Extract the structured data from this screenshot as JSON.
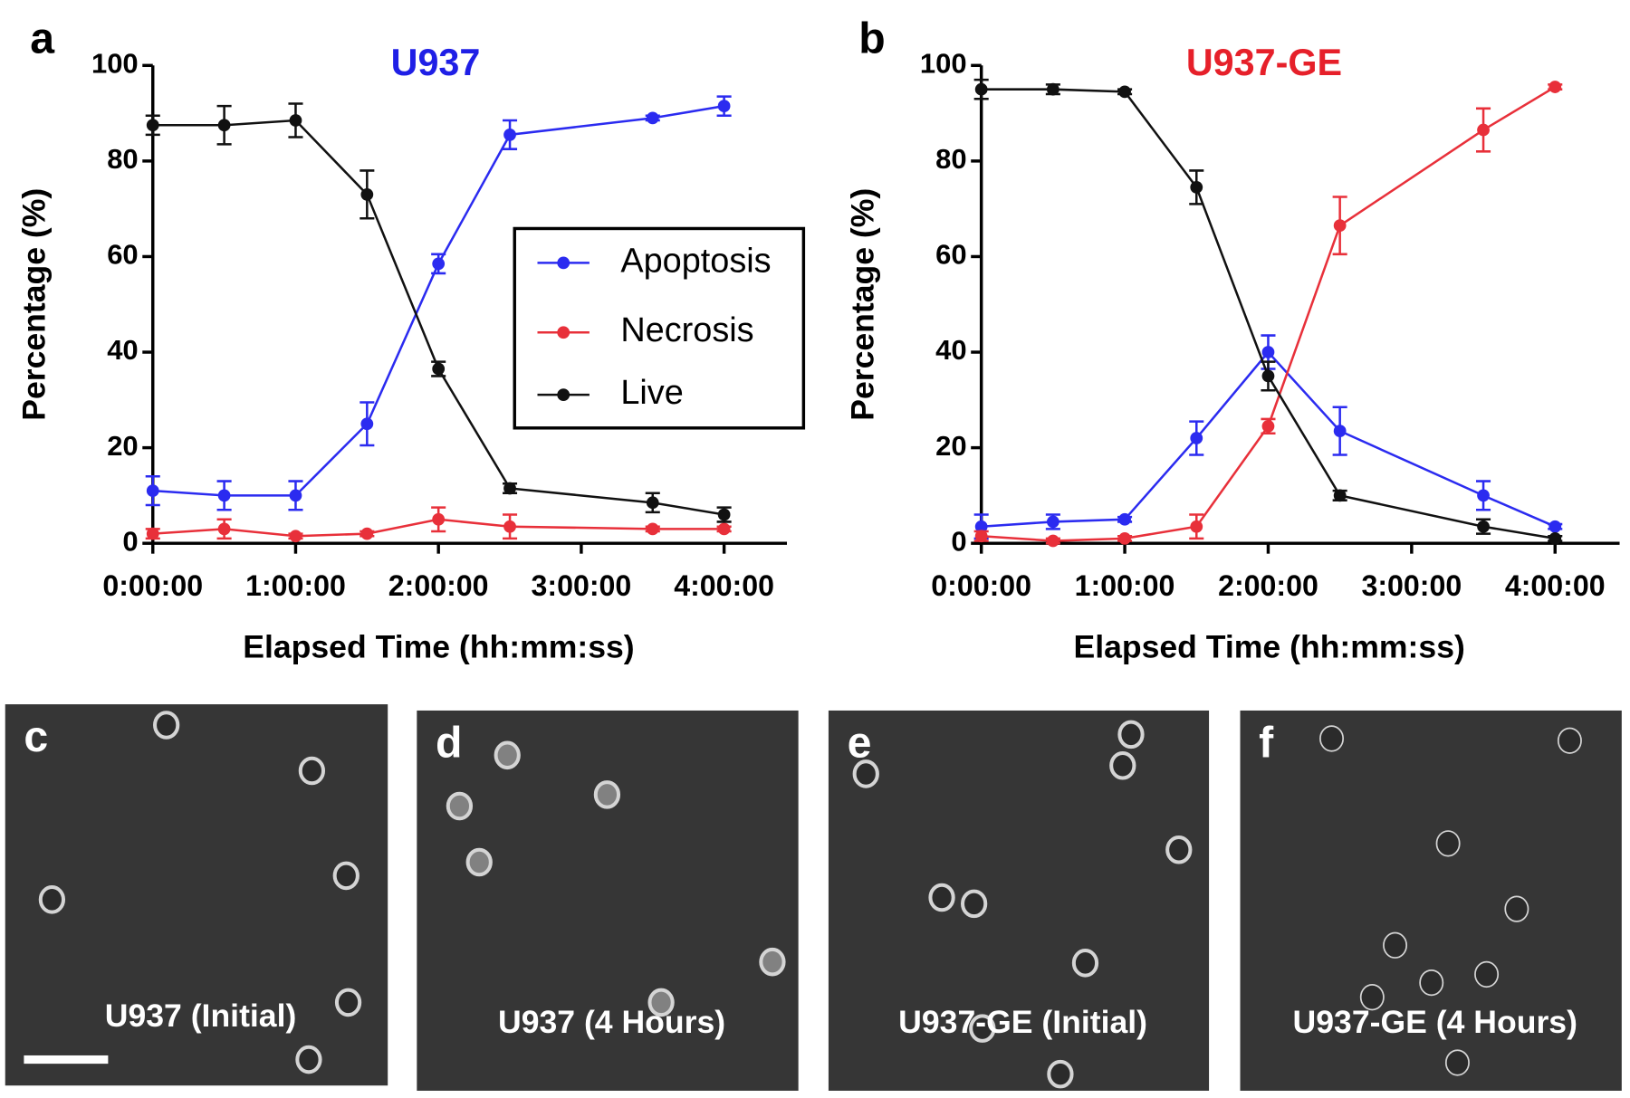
{
  "chart_data": [
    {
      "type": "line",
      "panel_label": "a",
      "title": "U937",
      "title_color": "#1f1fe6",
      "xlabel": "Elapsed Time (hh:mm:ss)",
      "ylabel": "Percentage (%)",
      "x": [
        0,
        0.5,
        1,
        1.5,
        2,
        2.5,
        3.5,
        4
      ],
      "xlim": [
        0,
        4.44
      ],
      "xticks": [
        {
          "value": 0,
          "label": "0:00:00"
        },
        {
          "value": 1,
          "label": "1:00:00"
        },
        {
          "value": 2,
          "label": "2:00:00"
        },
        {
          "value": 3,
          "label": "3:00:00"
        },
        {
          "value": 4,
          "label": "4:00:00"
        }
      ],
      "ylim": [
        0,
        100
      ],
      "yticks": [
        0,
        20,
        40,
        60,
        80,
        100
      ],
      "grid": false,
      "legend": "center-right",
      "series": [
        {
          "name": "Apoptosis",
          "color": "#2b2bf0",
          "values": [
            11,
            10,
            10,
            25,
            58.5,
            85.5,
            89,
            91.5
          ],
          "errors": [
            3,
            3,
            3,
            4.5,
            2,
            3,
            0.5,
            2
          ]
        },
        {
          "name": "Necrosis",
          "color": "#e8303a",
          "values": [
            2,
            3,
            1.5,
            2,
            5,
            3.5,
            3,
            3
          ],
          "errors": [
            1,
            2,
            0.5,
            0.5,
            2.5,
            2.5,
            0.5,
            0.5
          ]
        },
        {
          "name": "Live",
          "color": "#111111",
          "values": [
            87.5,
            87.5,
            88.5,
            73,
            36.5,
            11.5,
            8.5,
            6
          ],
          "errors": [
            2,
            4,
            3.5,
            5,
            1.5,
            1,
            2,
            1.5
          ]
        }
      ]
    },
    {
      "type": "line",
      "panel_label": "b",
      "title": "U937-GE",
      "title_color": "#e6202a",
      "xlabel": "Elapsed Time (hh:mm:ss)",
      "ylabel": "Percentage (%)",
      "x": [
        0,
        0.5,
        1,
        1.5,
        2,
        2.5,
        3.5,
        4
      ],
      "xlim": [
        0,
        4.45
      ],
      "xticks": [
        {
          "value": 0,
          "label": "0:00:00"
        },
        {
          "value": 1,
          "label": "1:00:00"
        },
        {
          "value": 2,
          "label": "2:00:00"
        },
        {
          "value": 3,
          "label": "3:00:00"
        },
        {
          "value": 4,
          "label": "4:00:00"
        }
      ],
      "ylim": [
        0,
        100
      ],
      "yticks": [
        0,
        20,
        40,
        60,
        80,
        100
      ],
      "grid": false,
      "series": [
        {
          "color": "#2b2bf0",
          "values": [
            3.5,
            4.5,
            5,
            22,
            40,
            23.5,
            10,
            3.5
          ],
          "errors": [
            2.5,
            1.5,
            0.5,
            3.5,
            3.5,
            5,
            3,
            0.5
          ]
        },
        {
          "color": "#e8303a",
          "values": [
            1.5,
            0.5,
            1,
            3.5,
            24.5,
            66.5,
            86.5,
            95.5
          ],
          "errors": [
            1,
            0.5,
            0.5,
            2.5,
            1.5,
            6,
            4.5,
            0.5
          ]
        },
        {
          "color": "#111111",
          "values": [
            95,
            95,
            94.5,
            74.5,
            35,
            10,
            3.5,
            1
          ],
          "errors": [
            2,
            1,
            0.5,
            3.5,
            3,
            1,
            1.5,
            0.5
          ]
        }
      ]
    }
  ],
  "images": [
    {
      "label": "c",
      "caption": "U937 (Initial)"
    },
    {
      "label": "d",
      "caption": "U937 (4 Hours)"
    },
    {
      "label": "e",
      "caption": "U937-GE (Initial)"
    },
    {
      "label": "f",
      "caption": "U937-GE (4 Hours)"
    }
  ]
}
